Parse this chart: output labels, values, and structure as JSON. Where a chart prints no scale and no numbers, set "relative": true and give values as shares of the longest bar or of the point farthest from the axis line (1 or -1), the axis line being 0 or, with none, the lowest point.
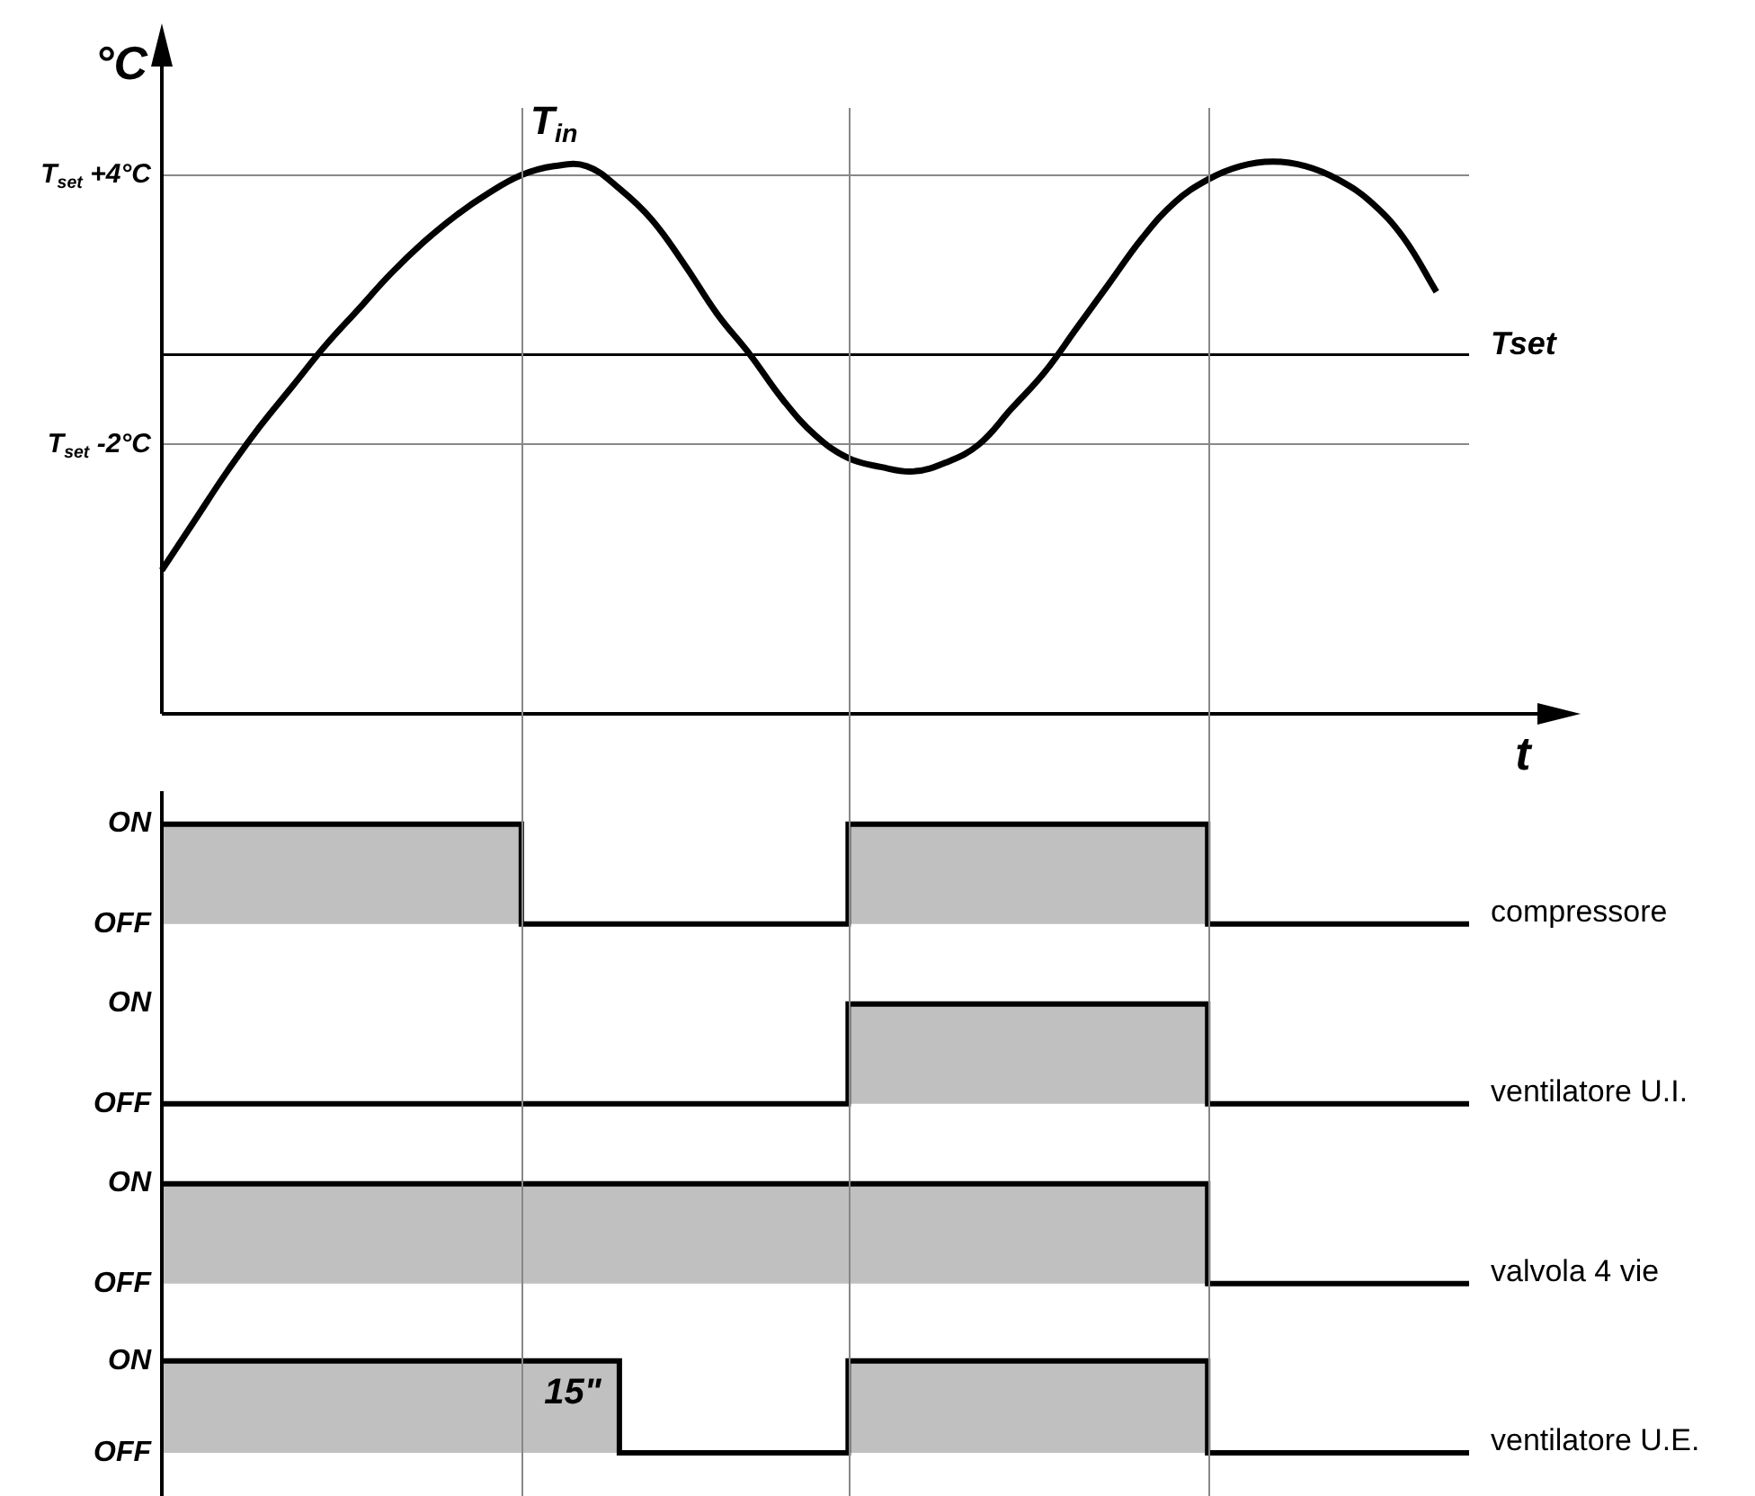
{
  "chart_data": [
    {
      "type": "line",
      "ylabel": "°C",
      "xlabel": "t",
      "ylim": [
        -8,
        6.5
      ],
      "categories": [
        null,
        null,
        null,
        null,
        null,
        null,
        null,
        null,
        null,
        null,
        null,
        null,
        null,
        null,
        null,
        null,
        null,
        null,
        null,
        null,
        null,
        null,
        null,
        null,
        null,
        null,
        null,
        null,
        null,
        null,
        null,
        null,
        null,
        null,
        null,
        null,
        null,
        null,
        null,
        null,
        null
      ],
      "yticks": [
        {
          "value": 4,
          "label": "T$_{set}$ +4°C"
        },
        {
          "value": -2,
          "label": "T$_{set}$ -2°C"
        }
      ],
      "grid": "y",
      "tick_labels": "y",
      "legend": false,
      "series": [
        {
          "name": "T$_{in}$",
          "color": "#000000",
          "values": [
            -4.8,
            -3.7,
            -2.6,
            -1.6,
            -0.7,
            0.2,
            1.0,
            1.8,
            2.5,
            3.1,
            3.6,
            4.0,
            4.2,
            4.2,
            3.7,
            3.0,
            2.0,
            0.9,
            0,
            -1.0,
            -1.8,
            -2.3,
            -2.5,
            -2.6,
            -2.4,
            -2.0,
            -1.2,
            -0.4,
            0.6,
            1.6,
            2.6,
            3.4,
            3.9,
            4.2,
            4.3,
            4.2,
            3.9,
            3.4,
            2.6,
            1.4,
            null
          ]
        }
      ],
      "ref_lines": [
        {
          "axis": "y",
          "value": 0,
          "label": "Tset",
          "color": "#000000"
        }
      ]
    },
    {
      "type": "step",
      "relative": true,
      "annotations": [
        "ON",
        "OFF"
      ],
      "legend": false,
      "categories": [
        null,
        null,
        null,
        null,
        null,
        null,
        null,
        null,
        null,
        null,
        null,
        null,
        null,
        null,
        null,
        null,
        null,
        null,
        null,
        null,
        null,
        null,
        null,
        null,
        null,
        null,
        null,
        null,
        null,
        null,
        null,
        null,
        null,
        null,
        null,
        null,
        null,
        null,
        null,
        null,
        null
      ],
      "series": [
        {
          "name": "compressore",
          "color": "#000000",
          "values": [
            1,
            1,
            1,
            1,
            1,
            1,
            1,
            1,
            1,
            1,
            1,
            0,
            0,
            0,
            0,
            0,
            0,
            0,
            0,
            0,
            0,
            1,
            1,
            1,
            1,
            1,
            1,
            1,
            1,
            1,
            1,
            1,
            0,
            0,
            0,
            0,
            0,
            0,
            0,
            0,
            0
          ]
        }
      ]
    },
    {
      "type": "step",
      "relative": true,
      "annotations": [
        "ON",
        "OFF"
      ],
      "legend": false,
      "categories": [
        null,
        null,
        null,
        null,
        null,
        null,
        null,
        null,
        null,
        null,
        null,
        null,
        null,
        null,
        null,
        null,
        null,
        null,
        null,
        null,
        null,
        null,
        null,
        null,
        null,
        null,
        null,
        null,
        null,
        null,
        null,
        null,
        null,
        null,
        null,
        null,
        null,
        null,
        null,
        null,
        null
      ],
      "series": [
        {
          "name": "ventilatore U.I.",
          "color": "#000000",
          "values": [
            0,
            0,
            0,
            0,
            0,
            0,
            0,
            0,
            0,
            0,
            0,
            0,
            0,
            0,
            0,
            0,
            0,
            0,
            0,
            0,
            0,
            1,
            1,
            1,
            1,
            1,
            1,
            1,
            1,
            1,
            1,
            1,
            0,
            0,
            0,
            0,
            0,
            0,
            0,
            0,
            0
          ]
        }
      ]
    },
    {
      "type": "step",
      "relative": true,
      "annotations": [
        "ON",
        "OFF"
      ],
      "legend": false,
      "categories": [
        null,
        null,
        null,
        null,
        null,
        null,
        null,
        null,
        null,
        null,
        null,
        null,
        null,
        null,
        null,
        null,
        null,
        null,
        null,
        null,
        null,
        null,
        null,
        null,
        null,
        null,
        null,
        null,
        null,
        null,
        null,
        null,
        null,
        null,
        null,
        null,
        null,
        null,
        null,
        null,
        null
      ],
      "series": [
        {
          "name": "valvola 4 vie",
          "color": "#000000",
          "values": [
            1,
            1,
            1,
            1,
            1,
            1,
            1,
            1,
            1,
            1,
            1,
            1,
            1,
            1,
            1,
            1,
            1,
            1,
            1,
            1,
            1,
            1,
            1,
            1,
            1,
            1,
            1,
            1,
            1,
            1,
            1,
            1,
            0,
            0,
            0,
            0,
            0,
            0,
            0,
            0,
            0
          ]
        }
      ]
    },
    {
      "type": "step",
      "relative": true,
      "legend": false,
      "categories": [
        null,
        null,
        null,
        null,
        null,
        null,
        null,
        null,
        null,
        null,
        null,
        null,
        null,
        null,
        null,
        null,
        null,
        null,
        null,
        null,
        null,
        null,
        null,
        null,
        null,
        null,
        null,
        null,
        null,
        null,
        null,
        null,
        null,
        null,
        null,
        null,
        null,
        null,
        null,
        null,
        null
      ],
      "series": [
        {
          "name": "ventilatore U.E.",
          "color": "#000000",
          "values": [
            1,
            1,
            1,
            1,
            1,
            1,
            1,
            1,
            1,
            1,
            1,
            1,
            1,
            1,
            0,
            0,
            0,
            0,
            0,
            0,
            0,
            1,
            1,
            1,
            1,
            1,
            1,
            1,
            1,
            1,
            1,
            1,
            0,
            0,
            0,
            0,
            0,
            0,
            0,
            0,
            0
          ]
        }
      ],
      "annotations": [
        "ON",
        "OFF",
        "15\""
      ]
    }
  ]
}
